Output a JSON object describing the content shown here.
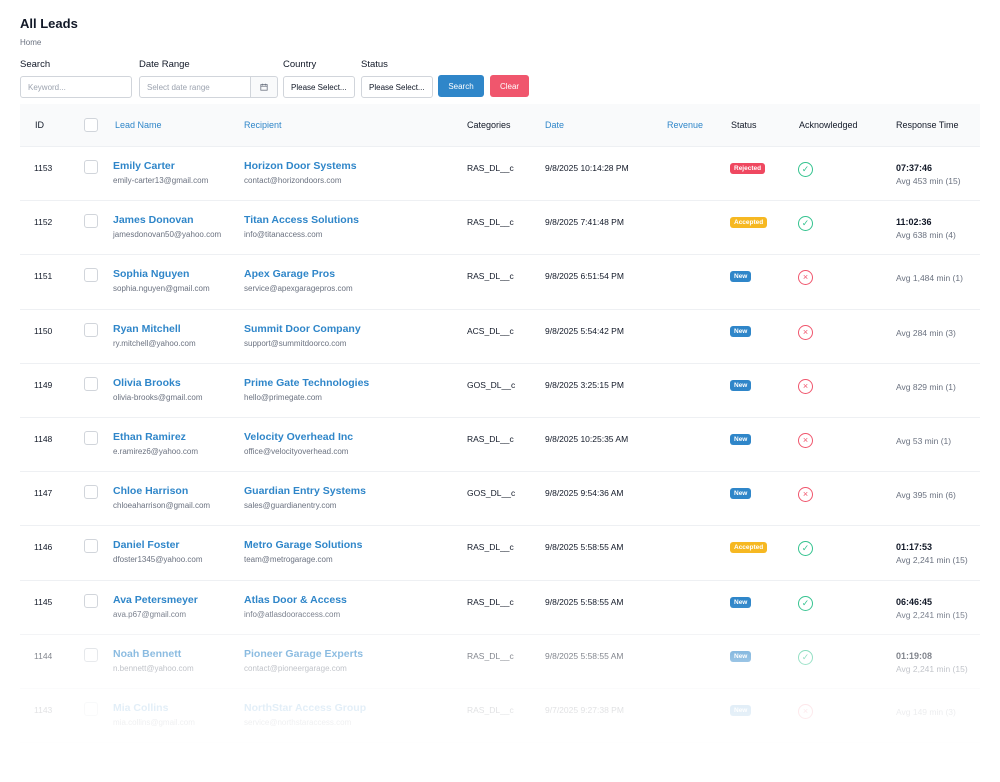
{
  "header": {
    "title": "All Leads",
    "breadcrumb": "Home"
  },
  "filters": {
    "search_label": "Search",
    "search_placeholder": "Keyword...",
    "date_label": "Date Range",
    "date_placeholder": "Select date range",
    "country_label": "Country",
    "country_value": "Please Select...",
    "status_label": "Status",
    "status_value": "Please Select...",
    "search_button": "Search",
    "clear_button": "Clear"
  },
  "table": {
    "columns": {
      "id": "ID",
      "lead_name": "Lead Name",
      "recipient": "Recipient",
      "categories": "Categories",
      "date": "Date",
      "revenue": "Revenue",
      "status": "Status",
      "acknowledged": "Acknowledged",
      "response_time": "Response Time"
    },
    "rows": [
      {
        "id": "1153",
        "name": "Emily Carter",
        "email": "emily-carter13@gmail.com",
        "recipient": "Horizon Door Systems",
        "recipient_email": "contact@horizondoors.com",
        "category": "RAS_DL__c",
        "date": "9/8/2025 10:14:28 PM",
        "status": "Rejected",
        "ack": true,
        "resp_time": "07:37:46",
        "resp_avg": "Avg 453 min (15)"
      },
      {
        "id": "1152",
        "name": "James Donovan",
        "email": "jamesdonovan50@yahoo.com",
        "recipient": "Titan Access Solutions",
        "recipient_email": "info@titanaccess.com",
        "category": "RAS_DL__c",
        "date": "9/8/2025 7:41:48 PM",
        "status": "Accepted",
        "ack": true,
        "resp_time": "11:02:36",
        "resp_avg": "Avg 638 min (4)"
      },
      {
        "id": "1151",
        "name": "Sophia Nguyen",
        "email": "sophia.nguyen@gmail.com",
        "recipient": "Apex Garage Pros",
        "recipient_email": "service@apexgaragepros.com",
        "category": "RAS_DL__c",
        "date": "9/8/2025 6:51:54 PM",
        "status": "New",
        "ack": false,
        "resp_time": "",
        "resp_avg": "Avg 1,484 min (1)"
      },
      {
        "id": "1150",
        "name": "Ryan Mitchell",
        "email": "ry.mitchell@yahoo.com",
        "recipient": "Summit Door Company",
        "recipient_email": "support@summitdoorco.com",
        "category": "ACS_DL__c",
        "date": "9/8/2025 5:54:42 PM",
        "status": "New",
        "ack": false,
        "resp_time": "",
        "resp_avg": "Avg 284 min (3)"
      },
      {
        "id": "1149",
        "name": "Olivia Brooks",
        "email": "olivia-brooks@gmail.com",
        "recipient": "Prime Gate Technologies",
        "recipient_email": "hello@primegate.com",
        "category": "GOS_DL__c",
        "date": "9/8/2025 3:25:15 PM",
        "status": "New",
        "ack": false,
        "resp_time": "",
        "resp_avg": "Avg 829 min (1)"
      },
      {
        "id": "1148",
        "name": "Ethan Ramirez",
        "email": "e.ramirez6@yahoo.com",
        "recipient": "Velocity Overhead Inc",
        "recipient_email": "office@velocityoverhead.com",
        "category": "RAS_DL__c",
        "date": "9/8/2025 10:25:35 AM",
        "status": "New",
        "ack": false,
        "resp_time": "",
        "resp_avg": "Avg 53 min (1)"
      },
      {
        "id": "1147",
        "name": "Chloe Harrison",
        "email": "chloeaharrison@gmail.com",
        "recipient": "Guardian Entry Systems",
        "recipient_email": "sales@guardianentry.com",
        "category": "GOS_DL__c",
        "date": "9/8/2025 9:54:36 AM",
        "status": "New",
        "ack": false,
        "resp_time": "",
        "resp_avg": "Avg 395 min (6)"
      },
      {
        "id": "1146",
        "name": "Daniel Foster",
        "email": "dfoster1345@yahoo.com",
        "recipient": "Metro Garage Solutions",
        "recipient_email": "team@metrogarage.com",
        "category": "RAS_DL__c",
        "date": "9/8/2025 5:58:55 AM",
        "status": "Accepted",
        "ack": true,
        "resp_time": "01:17:53",
        "resp_avg": "Avg 2,241 min (15)"
      },
      {
        "id": "1145",
        "name": "Ava Petersmeyer",
        "email": "ava.p67@gmail.com",
        "recipient": "Atlas Door & Access",
        "recipient_email": "info@atlasdooraccess.com",
        "category": "RAS_DL__c",
        "date": "9/8/2025 5:58:55 AM",
        "status": "New",
        "ack": true,
        "resp_time": "06:46:45",
        "resp_avg": "Avg 2,241 min (15)"
      },
      {
        "id": "1144",
        "name": "Noah Bennett",
        "email": "n.bennett@yahoo.com",
        "recipient": "Pioneer Garage Experts",
        "recipient_email": "contact@pioneergarage.com",
        "category": "RAS_DL__c",
        "date": "9/8/2025 5:58:55 AM",
        "status": "New",
        "ack": true,
        "resp_time": "01:19:08",
        "resp_avg": "Avg 2,241 min (15)"
      },
      {
        "id": "1143",
        "name": "Mia Collins",
        "email": "mia.collins@gmail.com",
        "recipient": "NorthStar Access Group",
        "recipient_email": "service@northstaraccess.com",
        "category": "RAS_DL__c",
        "date": "9/7/2025 9:27:38 PM",
        "status": "New",
        "ack": false,
        "resp_time": "",
        "resp_avg": "Avg 149 min (3)"
      }
    ]
  },
  "colors": {
    "accent": "#2f86c9",
    "danger": "#f0566d",
    "warning": "#f6b822",
    "success": "#34c38f"
  },
  "icons": {
    "calendar": "calendar-icon",
    "ack_yes": "check-circle-icon",
    "ack_no": "x-circle-icon"
  }
}
